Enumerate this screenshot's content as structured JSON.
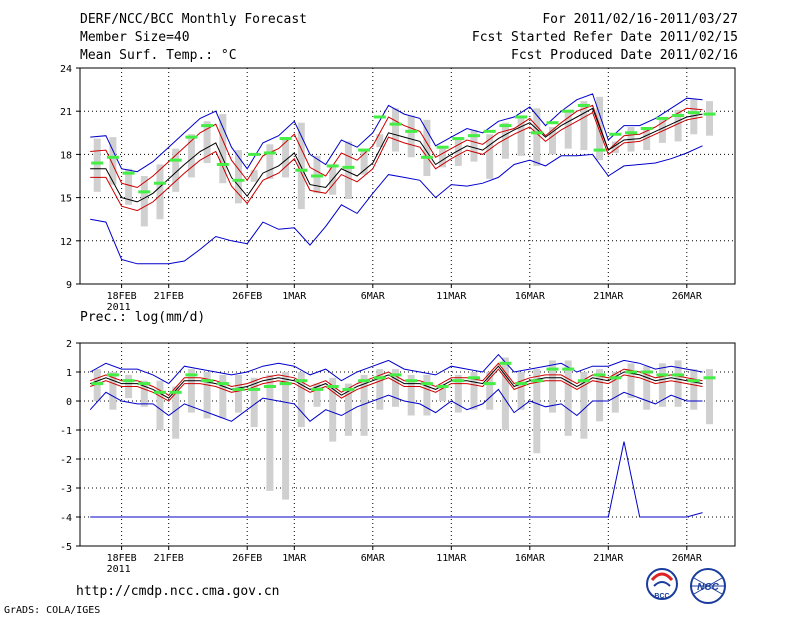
{
  "header": {
    "title": "DERF/NCC/BCC Monthly Forecast",
    "member": "Member Size=40",
    "variable": "Mean Surf. Temp.: °C",
    "period": "For 2011/02/16-2011/03/27",
    "started": "Fcst Started Refer Date 2011/02/15",
    "produced": "Fcst Produced Date 2011/02/16"
  },
  "panel2_title": "Prec.: log(mm/d)",
  "footer": {
    "url": "http://cmdp.ncc.cma.gov.cn",
    "credit": "GrADS: COLA/IGES",
    "logo1_text": "BCC",
    "logo2_text": "NCC"
  },
  "colors": {
    "envelope": "#0000cc",
    "spread": "#cc0000",
    "mean": "#000000",
    "median": "#44ee44",
    "box": "#d0d0d0"
  },
  "x_ticks": [
    "18FEB",
    "21FEB",
    "26FEB",
    "1MAR",
    "6MAR",
    "11MAR",
    "16MAR",
    "21MAR",
    "26MAR"
  ],
  "x_year": "2011",
  "chart_data": [
    {
      "type": "line",
      "title": "Mean Surf. Temp.: °C",
      "ylim": [
        9,
        24
      ],
      "yticks": [
        9,
        12,
        15,
        18,
        21,
        24
      ],
      "days": 40,
      "series": [
        {
          "name": "max",
          "values": [
            19.2,
            19.3,
            17.0,
            16.8,
            17.5,
            18.5,
            19.5,
            20.5,
            21.0,
            18.5,
            17.0,
            18.8,
            19.3,
            20.3,
            18.0,
            17.3,
            19.0,
            18.5,
            19.5,
            21.4,
            20.8,
            20.5,
            18.6,
            19.2,
            19.8,
            19.5,
            20.3,
            20.6,
            21.3,
            20.0,
            21.0,
            21.8,
            22.2,
            19.0,
            20.0,
            20.0,
            20.5,
            21.2,
            21.9,
            21.8
          ]
        },
        {
          "name": "upper",
          "values": [
            18.2,
            18.3,
            16.0,
            15.7,
            16.5,
            17.5,
            18.5,
            19.5,
            20.1,
            17.6,
            16.2,
            17.9,
            18.4,
            19.4,
            17.1,
            16.5,
            18.1,
            17.6,
            18.6,
            20.6,
            20.0,
            19.6,
            17.8,
            18.4,
            19.0,
            18.7,
            19.5,
            19.8,
            20.5,
            19.3,
            20.2,
            21.0,
            21.4,
            18.3,
            19.3,
            19.4,
            19.9,
            20.6,
            21.2,
            21.1
          ]
        },
        {
          "name": "mean",
          "values": [
            17.0,
            17.0,
            15.0,
            14.7,
            15.3,
            16.3,
            17.3,
            18.2,
            18.8,
            16.4,
            15.1,
            16.7,
            17.2,
            18.1,
            15.9,
            15.7,
            17.0,
            16.5,
            17.4,
            19.5,
            19.2,
            18.9,
            17.3,
            18.0,
            18.6,
            18.3,
            19.1,
            19.7,
            20.2,
            19.2,
            20.0,
            20.6,
            21.2,
            18.3,
            19.0,
            19.1,
            19.6,
            20.1,
            20.6,
            20.8
          ]
        },
        {
          "name": "lower",
          "values": [
            16.4,
            16.4,
            14.4,
            14.1,
            14.7,
            15.7,
            16.7,
            17.6,
            18.2,
            15.8,
            14.6,
            16.2,
            16.7,
            17.7,
            15.5,
            15.3,
            16.6,
            16.1,
            17.0,
            19.2,
            18.8,
            18.5,
            17.0,
            17.7,
            18.3,
            18.0,
            18.8,
            19.4,
            19.9,
            18.9,
            19.7,
            20.3,
            20.9,
            18.0,
            18.8,
            18.9,
            19.4,
            19.9,
            20.4,
            20.6
          ]
        },
        {
          "name": "min",
          "values": [
            13.5,
            13.3,
            10.7,
            10.4,
            10.4,
            10.4,
            10.6,
            11.4,
            12.3,
            12.0,
            11.8,
            13.3,
            12.8,
            12.9,
            11.7,
            13.0,
            14.5,
            13.9,
            15.3,
            16.6,
            16.4,
            16.2,
            15.0,
            15.9,
            15.8,
            16.0,
            16.4,
            17.3,
            17.6,
            17.2,
            17.9,
            17.9,
            18.0,
            16.5,
            17.2,
            17.3,
            17.4,
            17.7,
            18.1,
            18.6
          ]
        },
        {
          "name": "median",
          "values": [
            17.4,
            17.8,
            16.7,
            15.4,
            16.0,
            17.6,
            19.2,
            20.0,
            17.3,
            16.2,
            18.0,
            18.1,
            19.1,
            16.9,
            16.5,
            17.2,
            17.1,
            18.3,
            20.6,
            20.1,
            19.6,
            17.8,
            18.5,
            19.1,
            19.3,
            19.6,
            20.0,
            20.6,
            19.5,
            20.2,
            21.0,
            21.4,
            18.3,
            19.4,
            19.5,
            19.8,
            20.5,
            20.7,
            20.9,
            20.8
          ]
        },
        {
          "name": "box_top",
          "values": [
            19.1,
            19.2,
            17.0,
            16.5,
            17.3,
            18.4,
            19.4,
            20.3,
            20.8,
            18.3,
            16.9,
            18.7,
            19.2,
            20.2,
            17.9,
            17.2,
            18.9,
            18.4,
            19.4,
            21.2,
            20.7,
            20.4,
            18.5,
            19.1,
            19.7,
            19.4,
            20.2,
            20.5,
            21.2,
            19.9,
            20.9,
            21.7,
            22.0,
            18.9,
            19.9,
            19.9,
            20.4,
            21.1,
            21.8,
            21.7
          ]
        },
        {
          "name": "box_bottom",
          "values": [
            15.4,
            15.9,
            14.5,
            13.0,
            13.5,
            15.4,
            16.4,
            17.4,
            16.0,
            14.6,
            16.1,
            16.3,
            16.4,
            14.2,
            15.3,
            15.2,
            14.9,
            16.6,
            18.5,
            18.2,
            17.8,
            16.5,
            17.1,
            17.2,
            17.5,
            16.3,
            17.7,
            17.9,
            17.2,
            18.0,
            18.4,
            18.3,
            17.6,
            18.1,
            18.2,
            18.3,
            18.8,
            18.9,
            19.4,
            19.3
          ]
        }
      ]
    },
    {
      "type": "line",
      "title": "Prec.: log(mm/d)",
      "ylim": [
        -5,
        2
      ],
      "yticks": [
        -5,
        -4,
        -3,
        -2,
        -1,
        0,
        1,
        2
      ],
      "days": 40,
      "series": [
        {
          "name": "max",
          "values": [
            1.0,
            1.3,
            1.1,
            1.1,
            0.9,
            0.6,
            1.2,
            1.1,
            1.0,
            0.9,
            1.0,
            1.2,
            1.3,
            1.2,
            0.9,
            1.1,
            0.7,
            1.0,
            1.2,
            1.4,
            1.1,
            1.0,
            0.9,
            1.2,
            1.1,
            1.0,
            1.6,
            1.0,
            1.1,
            1.2,
            1.3,
            1.0,
            1.2,
            1.2,
            1.4,
            1.3,
            1.1,
            1.2,
            1.1,
            1.0
          ]
        },
        {
          "name": "upper",
          "values": [
            0.7,
            0.9,
            0.7,
            0.7,
            0.5,
            0.2,
            0.8,
            0.8,
            0.7,
            0.5,
            0.6,
            0.8,
            0.9,
            0.8,
            0.5,
            0.7,
            0.3,
            0.6,
            0.8,
            1.0,
            0.7,
            0.7,
            0.5,
            0.8,
            0.8,
            0.7,
            1.3,
            0.6,
            0.8,
            0.9,
            0.9,
            0.6,
            0.9,
            0.8,
            1.1,
            1.0,
            0.8,
            0.9,
            0.8,
            0.7
          ]
        },
        {
          "name": "mean",
          "values": [
            0.6,
            0.8,
            0.6,
            0.6,
            0.4,
            0.1,
            0.7,
            0.7,
            0.6,
            0.4,
            0.5,
            0.7,
            0.8,
            0.7,
            0.4,
            0.6,
            0.2,
            0.5,
            0.7,
            0.9,
            0.6,
            0.6,
            0.4,
            0.7,
            0.7,
            0.6,
            1.2,
            0.5,
            0.7,
            0.8,
            0.8,
            0.5,
            0.8,
            0.7,
            1.0,
            0.9,
            0.7,
            0.8,
            0.7,
            0.6
          ]
        },
        {
          "name": "lower",
          "values": [
            0.5,
            0.7,
            0.5,
            0.5,
            0.3,
            0.0,
            0.6,
            0.6,
            0.5,
            0.3,
            0.4,
            0.6,
            0.7,
            0.6,
            0.3,
            0.5,
            0.1,
            0.4,
            0.6,
            0.8,
            0.5,
            0.5,
            0.3,
            0.6,
            0.6,
            0.5,
            1.1,
            0.4,
            0.6,
            0.7,
            0.7,
            0.4,
            0.7,
            0.6,
            0.9,
            0.8,
            0.6,
            0.7,
            0.6,
            0.5
          ]
        },
        {
          "name": "min",
          "values": [
            -0.3,
            0.3,
            0.0,
            -0.1,
            -0.1,
            -0.5,
            -0.1,
            -0.3,
            -0.5,
            -0.7,
            -0.3,
            0.1,
            0.0,
            -0.1,
            -0.7,
            -0.3,
            -0.5,
            -0.2,
            0.0,
            0.2,
            0.0,
            -0.1,
            -0.4,
            0.0,
            -0.3,
            -0.1,
            0.4,
            -0.4,
            0.0,
            -0.2,
            -0.1,
            -0.5,
            0.0,
            0.0,
            0.3,
            0.1,
            -0.1,
            0.2,
            0.0,
            0.0
          ]
        },
        {
          "name": "median",
          "values": [
            0.6,
            0.9,
            0.7,
            0.6,
            0.3,
            0.3,
            0.9,
            0.7,
            0.6,
            0.4,
            0.4,
            0.5,
            0.6,
            0.7,
            0.4,
            0.5,
            0.4,
            0.7,
            0.8,
            0.9,
            0.7,
            0.6,
            0.5,
            0.7,
            0.8,
            0.6,
            1.3,
            0.6,
            0.7,
            1.1,
            1.1,
            0.7,
            0.9,
            0.8,
            1.0,
            1.0,
            0.9,
            0.9,
            0.7,
            0.8
          ]
        },
        {
          "name": "box_top",
          "values": [
            1.1,
            1.0,
            0.9,
            0.7,
            0.7,
            0.5,
            1.1,
            1.0,
            0.9,
            0.9,
            0.8,
            0.9,
            1.0,
            1.0,
            0.6,
            0.8,
            0.6,
            0.9,
            1.1,
            1.1,
            0.9,
            0.9,
            0.6,
            0.9,
            1.0,
            1.0,
            1.5,
            1.0,
            1.1,
            1.4,
            1.4,
            1.0,
            1.1,
            1.0,
            1.3,
            1.2,
            1.3,
            1.4,
            1.1,
            1.1
          ]
        },
        {
          "name": "box_bottom",
          "values": [
            0.0,
            -0.3,
            0.1,
            -0.2,
            -1.0,
            -1.3,
            -0.4,
            -0.6,
            -0.6,
            -0.4,
            -0.9,
            -3.1,
            -3.4,
            -0.9,
            -0.2,
            -1.4,
            -1.2,
            -1.2,
            -0.3,
            -0.2,
            -0.5,
            -0.5,
            0.0,
            -0.4,
            -0.3,
            -0.3,
            -1.0,
            -0.3,
            -1.8,
            -0.4,
            -1.2,
            -1.3,
            -0.7,
            -0.4,
            0.1,
            -0.3,
            -0.2,
            -0.2,
            -0.3,
            -0.8
          ]
        },
        {
          "name": "lowest",
          "values": [
            -4,
            -4,
            -4,
            -4,
            -4,
            -4,
            -4,
            -4,
            -4,
            -4,
            -4,
            -4,
            -4,
            -4,
            -4,
            -4,
            -4,
            -4,
            -4,
            -4,
            -4,
            -4,
            -4,
            -4,
            -4,
            -4,
            -4,
            -4,
            -4,
            -4,
            -4,
            -4,
            -4,
            -4,
            -1.4,
            -4,
            -4,
            -4,
            -4,
            -3.85
          ]
        }
      ]
    }
  ]
}
